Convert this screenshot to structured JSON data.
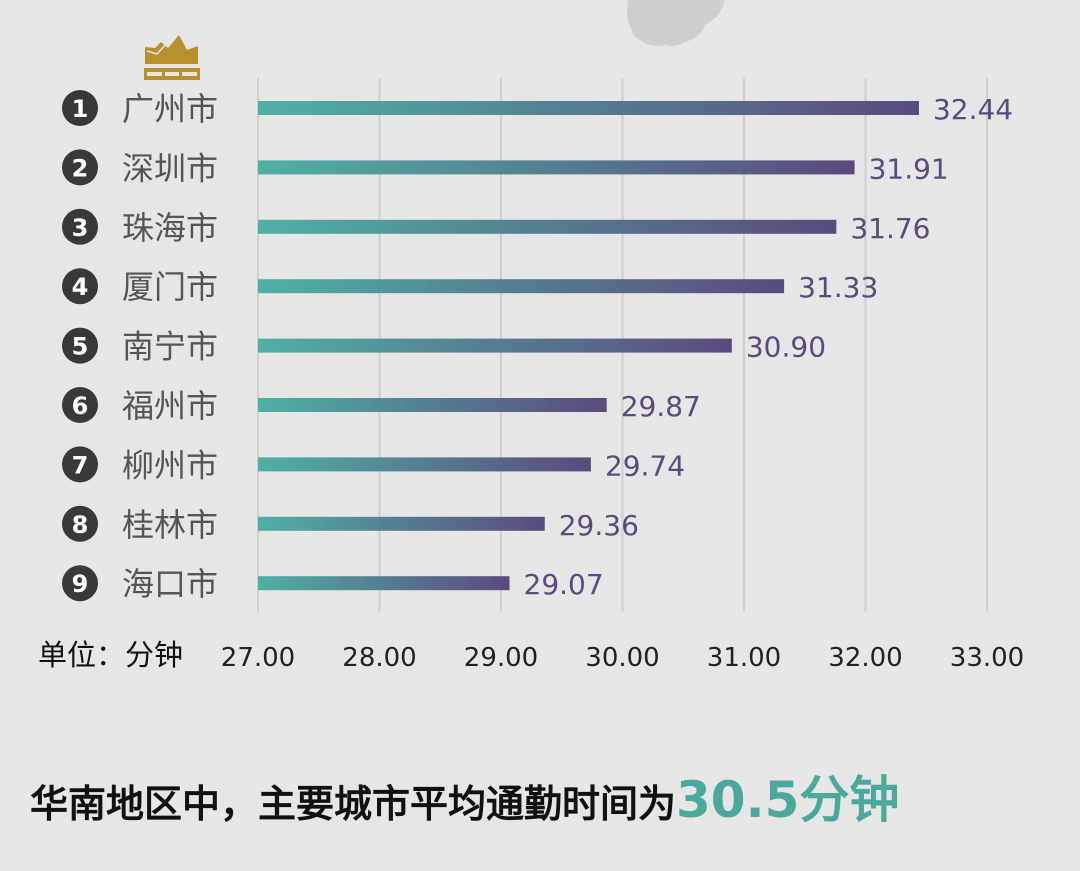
{
  "chart_data": {
    "type": "bar",
    "orientation": "horizontal",
    "categories": [
      "广州市",
      "深圳市",
      "珠海市",
      "厦门市",
      "南宁市",
      "福州市",
      "柳州市",
      "桂林市",
      "海口市"
    ],
    "ranks": [
      "1",
      "2",
      "3",
      "4",
      "5",
      "6",
      "7",
      "8",
      "9"
    ],
    "values": [
      32.44,
      31.91,
      31.76,
      31.33,
      30.9,
      29.87,
      29.74,
      29.36,
      29.07
    ],
    "value_labels": [
      "32.44",
      "31.91",
      "31.76",
      "31.33",
      "30.90",
      "29.87",
      "29.74",
      "29.36",
      "29.07"
    ],
    "xlim": [
      27,
      33
    ],
    "x_ticks": [
      "27.00",
      "28.00",
      "29.00",
      "30.00",
      "31.00",
      "32.00",
      "33.00"
    ],
    "grid": true,
    "colors": {
      "bar_start": "#4fb0a4",
      "bar_end": "#5b4a7e",
      "value_label": "#5b4a7e",
      "rank_circle": "#3a3838",
      "category": "#555555",
      "crown": "#b8902e"
    }
  },
  "unit_label": "单位：分钟",
  "summary": {
    "text": "华南地区中，主要城市平均通勤时间为",
    "highlight": "30.5分钟"
  }
}
